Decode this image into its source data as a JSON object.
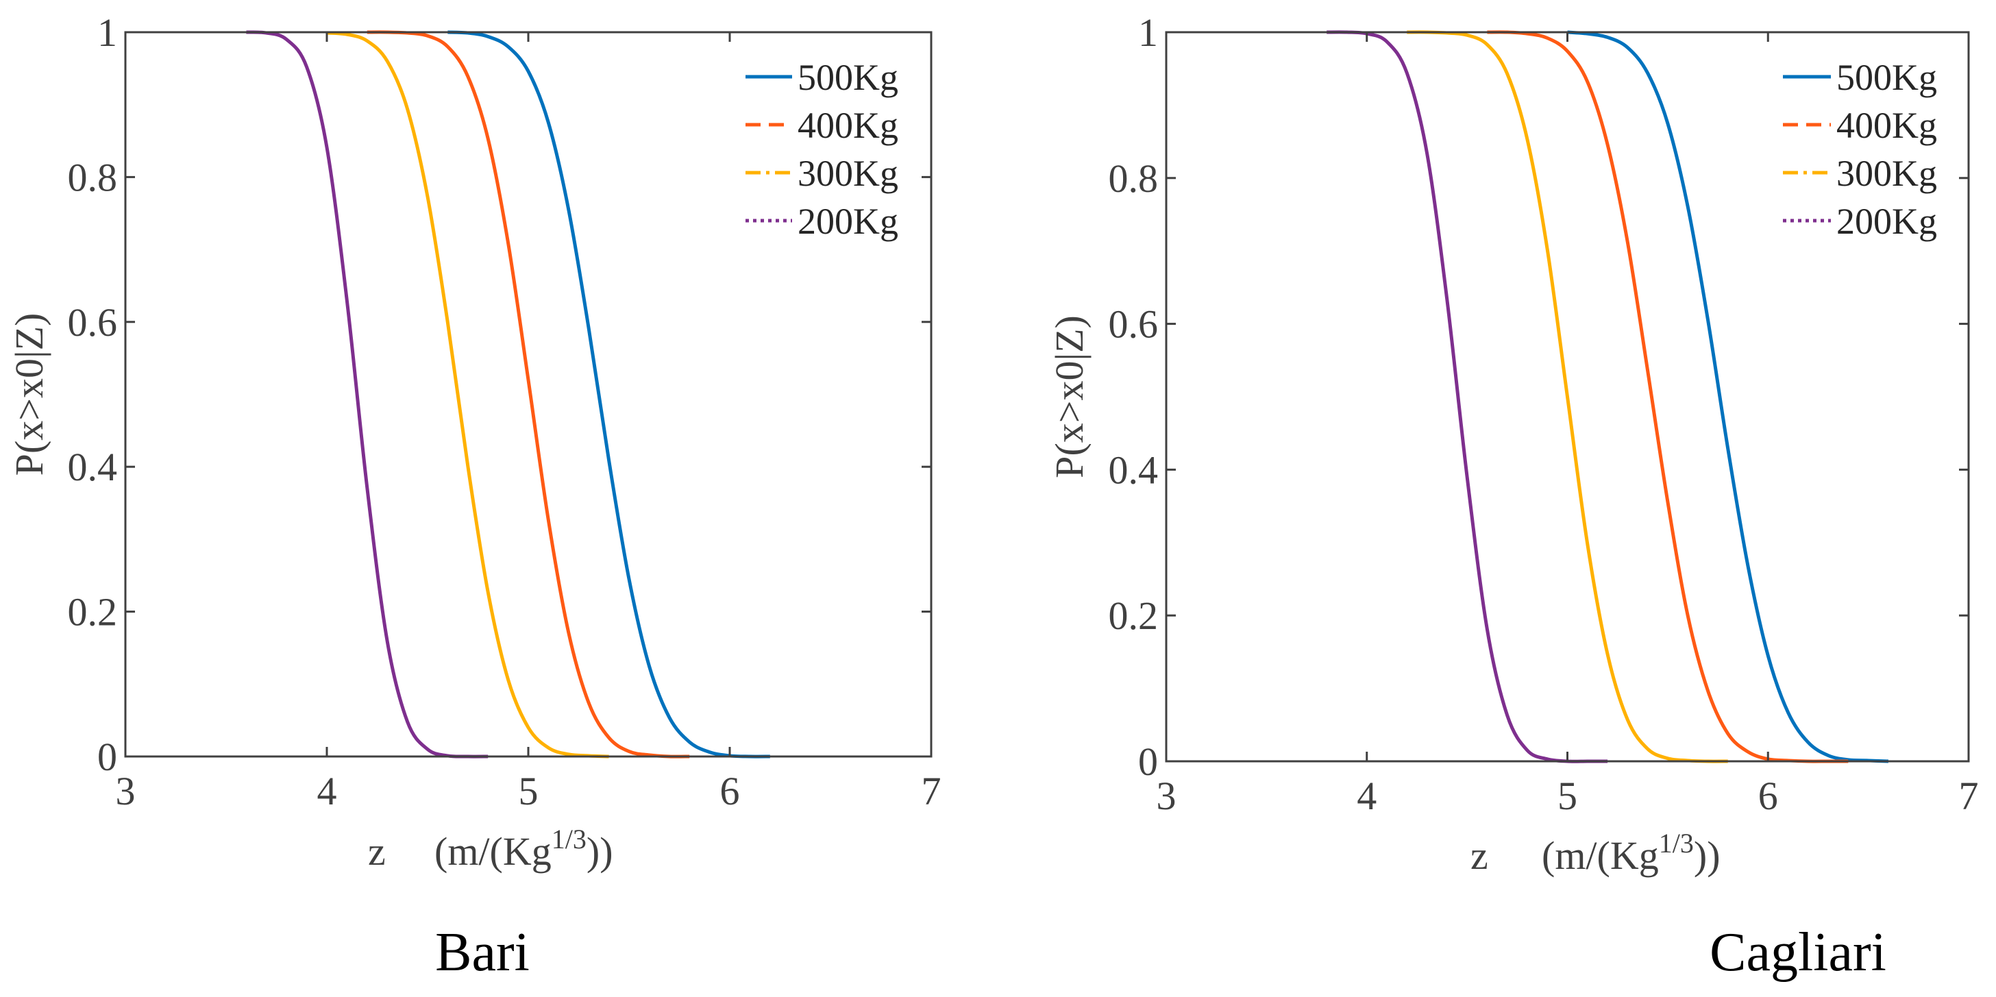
{
  "chart_data": [
    {
      "type": "line",
      "title": "Bari",
      "xlabel": "z",
      "xlabel_units": "(m/(Kg",
      "xlabel_units_sup": "1/3",
      "xlabel_units_close": "))",
      "ylabel": "P(x>x0|Z)",
      "xlim": [
        3,
        7
      ],
      "ylim": [
        0,
        1
      ],
      "xticks": [
        "3",
        "4",
        "5",
        "6",
        "7"
      ],
      "yticks": [
        "0",
        "0.2",
        "0.4",
        "0.6",
        "0.8",
        "1"
      ],
      "grid": false,
      "legend_position": "top-right",
      "series": [
        {
          "name": "500Kg",
          "color": "#0072BD",
          "dash": "solid",
          "x": [
            4.6,
            4.7,
            4.8,
            4.9,
            5.0,
            5.1,
            5.2,
            5.3,
            5.4,
            5.5,
            5.6,
            5.7,
            5.8,
            5.9,
            6.0,
            6.1,
            6.2
          ],
          "y": [
            1.0,
            0.999,
            0.994,
            0.98,
            0.946,
            0.875,
            0.755,
            0.591,
            0.409,
            0.245,
            0.125,
            0.054,
            0.02,
            0.006,
            0.001,
            0.0,
            0.0
          ]
        },
        {
          "name": "400Kg",
          "color": "#FF5A14",
          "dash": "dashed",
          "x": [
            4.2,
            4.3,
            4.4,
            4.5,
            4.6,
            4.7,
            4.8,
            4.9,
            5.0,
            5.1,
            5.2,
            5.3,
            5.4,
            5.5,
            5.6,
            5.7,
            5.8
          ],
          "y": [
            1.0,
            1.0,
            0.999,
            0.995,
            0.98,
            0.939,
            0.853,
            0.709,
            0.52,
            0.326,
            0.171,
            0.074,
            0.026,
            0.007,
            0.002,
            0.0,
            0.0
          ]
        },
        {
          "name": "300Kg",
          "color": "#FFB100",
          "dash": "dashdot",
          "x": [
            4.0,
            4.1,
            4.2,
            4.3,
            4.4,
            4.5,
            4.6,
            4.7,
            4.8,
            4.9,
            5.0,
            5.1,
            5.2,
            5.3,
            5.4
          ],
          "y": [
            0.999,
            0.997,
            0.988,
            0.96,
            0.894,
            0.773,
            0.599,
            0.401,
            0.227,
            0.106,
            0.04,
            0.012,
            0.003,
            0.001,
            0.0
          ]
        },
        {
          "name": "200Kg",
          "color": "#7E2F8E",
          "dash": "dotted",
          "x": [
            3.6,
            3.7,
            3.8,
            3.9,
            4.0,
            4.1,
            4.2,
            4.3,
            4.4,
            4.5,
            4.6,
            4.7,
            4.8
          ],
          "y": [
            1.0,
            0.999,
            0.99,
            0.952,
            0.841,
            0.629,
            0.371,
            0.159,
            0.048,
            0.01,
            0.001,
            0.0,
            0.0
          ]
        }
      ]
    },
    {
      "type": "line",
      "title": "Cagliari",
      "xlabel": "z",
      "xlabel_units": "(m/(Kg",
      "xlabel_units_sup": "1/3",
      "xlabel_units_close": "))",
      "ylabel": "P(x>x0|Z)",
      "xlim": [
        3,
        7
      ],
      "ylim": [
        0,
        1
      ],
      "xticks": [
        "3",
        "4",
        "5",
        "6",
        "7"
      ],
      "yticks": [
        "0",
        "0.2",
        "0.4",
        "0.6",
        "0.8",
        "1"
      ],
      "grid": false,
      "legend_position": "top-right",
      "series": [
        {
          "name": "500Kg",
          "color": "#0072BD",
          "dash": "solid",
          "x": [
            5.0,
            5.1,
            5.2,
            5.3,
            5.4,
            5.5,
            5.6,
            5.7,
            5.8,
            5.9,
            6.0,
            6.1,
            6.2,
            6.3,
            6.4,
            6.5,
            6.6
          ],
          "y": [
            1.0,
            0.998,
            0.993,
            0.979,
            0.944,
            0.875,
            0.761,
            0.606,
            0.429,
            0.268,
            0.145,
            0.067,
            0.026,
            0.008,
            0.002,
            0.001,
            0.0
          ]
        },
        {
          "name": "400Kg",
          "color": "#FF5A14",
          "dash": "dashed",
          "x": [
            4.6,
            4.7,
            4.8,
            4.9,
            5.0,
            5.1,
            5.2,
            5.3,
            5.4,
            5.5,
            5.6,
            5.7,
            5.8,
            5.9,
            6.0,
            6.1,
            6.2,
            6.3,
            6.4
          ],
          "y": [
            1.0,
            1.0,
            0.998,
            0.992,
            0.974,
            0.932,
            0.846,
            0.712,
            0.536,
            0.356,
            0.2,
            0.097,
            0.038,
            0.013,
            0.003,
            0.001,
            0.0,
            0.0,
            0.0
          ]
        },
        {
          "name": "300Kg",
          "color": "#FFB100",
          "dash": "dashdot",
          "x": [
            4.2,
            4.3,
            4.4,
            4.5,
            4.6,
            4.7,
            4.8,
            4.9,
            5.0,
            5.1,
            5.2,
            5.3,
            5.4,
            5.5,
            5.6,
            5.7,
            5.8
          ],
          "y": [
            1.0,
            1.0,
            0.999,
            0.996,
            0.983,
            0.943,
            0.853,
            0.702,
            0.5,
            0.298,
            0.147,
            0.057,
            0.017,
            0.004,
            0.001,
            0.0,
            0.0
          ]
        },
        {
          "name": "200Kg",
          "color": "#7E2F8E",
          "dash": "dotted",
          "x": [
            3.8,
            3.9,
            4.0,
            4.1,
            4.2,
            4.3,
            4.4,
            4.5,
            4.6,
            4.7,
            4.8,
            4.9,
            5.0,
            5.1,
            5.2
          ],
          "y": [
            1.0,
            1.0,
            0.998,
            0.987,
            0.944,
            0.834,
            0.633,
            0.39,
            0.181,
            0.063,
            0.015,
            0.003,
            0.0,
            0.0,
            0.0
          ]
        }
      ]
    }
  ]
}
